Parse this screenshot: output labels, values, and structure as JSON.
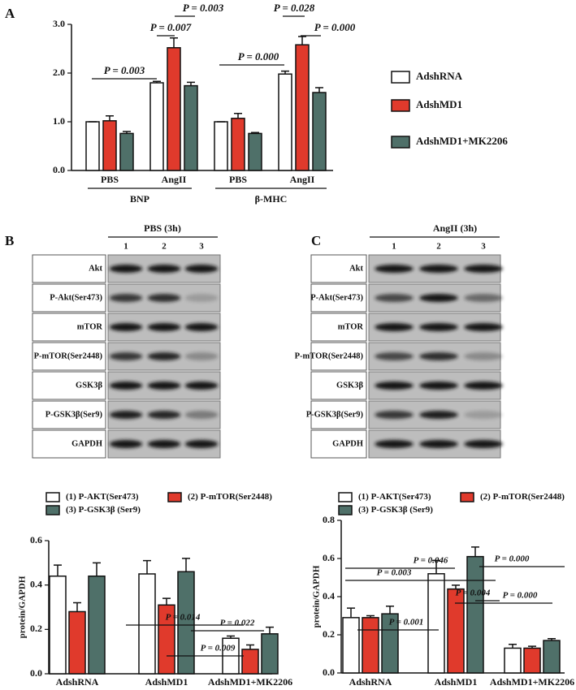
{
  "chart_data": [
    {
      "type": "bar",
      "panel": "A",
      "categories": [
        "PBS",
        "AngII",
        "PBS",
        "AngII"
      ],
      "groups": [
        "BNP",
        "β-MHC"
      ],
      "series": [
        {
          "name": "AdshRNA",
          "color": "#ffffff",
          "values": [
            1.0,
            1.8,
            1.0,
            1.98
          ],
          "errors": [
            0.0,
            0.03,
            0.0,
            0.06
          ]
        },
        {
          "name": "AdshMD1",
          "color": "#e03a2c",
          "values": [
            1.02,
            2.52,
            1.07,
            2.58
          ],
          "errors": [
            0.1,
            0.2,
            0.1,
            0.17
          ]
        },
        {
          "name": "AdshMD1+MK2206",
          "color": "#4f7069",
          "values": [
            0.76,
            1.74,
            0.76,
            1.6
          ],
          "errors": [
            0.04,
            0.07,
            0.02,
            0.1
          ]
        }
      ],
      "ylim": [
        0,
        3
      ],
      "yticks": [
        {
          "value": 0,
          "label": "0.0"
        },
        {
          "value": 1,
          "label": "1.0"
        },
        {
          "value": 2,
          "label": "2.0"
        },
        {
          "value": 3,
          "label": "3.0"
        }
      ],
      "annotations": [
        "P = 0.003",
        "P = 0.007",
        "P = 0.003",
        "P = 0.000",
        "P = 0.028",
        "P = 0.000"
      ]
    },
    {
      "type": "bar",
      "ylabel": "protein/GAPDH",
      "categories": [
        "AdshRNA",
        "AdshMD1",
        "AdshMD1+MK2206"
      ],
      "series": [
        {
          "name": "(1) P-AKT(Ser473)",
          "color": "#ffffff",
          "values": [
            0.44,
            0.45,
            0.16
          ],
          "errors": [
            0.05,
            0.06,
            0.01
          ]
        },
        {
          "name": "(2) P-mTOR(Ser2448)",
          "color": "#e03a2c",
          "values": [
            0.28,
            0.31,
            0.11
          ],
          "errors": [
            0.04,
            0.03,
            0.02
          ]
        },
        {
          "name": "(3) P-GSK3β (Ser9)",
          "color": "#4f7069",
          "values": [
            0.44,
            0.46,
            0.18
          ],
          "errors": [
            0.06,
            0.06,
            0.03
          ]
        }
      ],
      "ylim": [
        0,
        0.6
      ],
      "yticks": [
        {
          "value": 0,
          "label": "0.0"
        },
        0.2,
        0.4,
        0.6
      ],
      "annotations": [
        "P = 0.014",
        "P = 0.022",
        "P = 0.009"
      ]
    },
    {
      "type": "bar",
      "ylabel": "protein/GAPDH",
      "categories": [
        "AdshRNA",
        "AdshMD1",
        "AdshMD1+MK2206"
      ],
      "series": [
        {
          "name": "(1) P-AKT(Ser473)",
          "color": "#ffffff",
          "values": [
            0.29,
            0.52,
            0.13
          ],
          "errors": [
            0.05,
            0.07,
            0.02
          ]
        },
        {
          "name": "(2) P-mTOR(Ser2448)",
          "color": "#e03a2c",
          "values": [
            0.29,
            0.44,
            0.13
          ],
          "errors": [
            0.01,
            0.02,
            0.01
          ]
        },
        {
          "name": "(3) P-GSK3β (Ser9)",
          "color": "#4f7069",
          "values": [
            0.31,
            0.61,
            0.17
          ],
          "errors": [
            0.04,
            0.05,
            0.01
          ]
        }
      ],
      "ylim": [
        0,
        0.8
      ],
      "yticks": [
        {
          "value": 0,
          "label": "0.0"
        },
        0.2,
        0.4,
        0.6,
        0.8
      ],
      "annotations": [
        "P = 0.046",
        "P = 0.003",
        "P = 0.004",
        "P = 0.001",
        "P = 0.000",
        "P = 0.000"
      ]
    }
  ],
  "blots": [
    {
      "panel": "B",
      "header": "PBS (3h)",
      "lanes": [
        "1",
        "2",
        "3"
      ],
      "rows": [
        "Akt",
        "P-Akt(Ser473)",
        "mTOR",
        "P-mTOR(Ser2448)",
        "GSK3β",
        "P-GSK3β(Ser9)",
        "GAPDH"
      ]
    },
    {
      "panel": "C",
      "header": "AngII  (3h)",
      "lanes": [
        "1",
        "2",
        "3"
      ],
      "rows": [
        "Akt",
        "P-Akt(Ser473)",
        "mTOR",
        "P-mTOR(Ser2448)",
        "GSK3β",
        "P-GSK3β(Ser9)",
        "GAPDH"
      ]
    }
  ]
}
